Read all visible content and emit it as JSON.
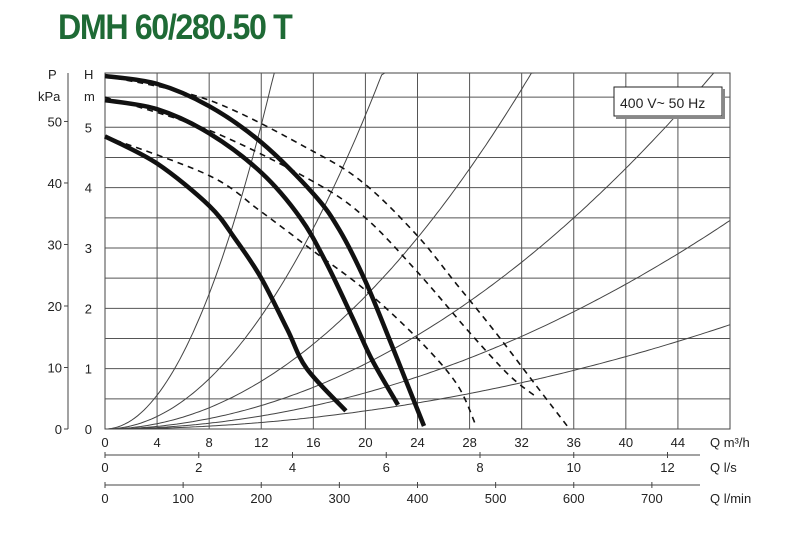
{
  "chart_data": {
    "type": "line",
    "title": "DMH 60/280.50 T",
    "voltage_label": "400 V~ 50 Hz",
    "axes": {
      "q_m3h": {
        "label": "Q m³/h",
        "ticks": [
          0,
          4,
          8,
          12,
          16,
          20,
          24,
          28,
          32,
          36,
          40,
          44
        ],
        "range": [
          0,
          48
        ]
      },
      "q_ls": {
        "label": "Q l/s",
        "ticks": [
          0,
          2,
          4,
          6,
          8,
          10,
          12
        ]
      },
      "q_lmin": {
        "label": "Q l/min",
        "ticks": [
          0,
          100,
          200,
          300,
          400,
          500,
          600,
          700
        ]
      },
      "h_m": {
        "label_top": "H",
        "label_unit": "m",
        "ticks": [
          0,
          1,
          2,
          3,
          4,
          5
        ],
        "range": [
          0,
          5.9
        ]
      },
      "p_kpa": {
        "label_top": "P",
        "label_unit": "kPa",
        "ticks": [
          0,
          10,
          20,
          30,
          40,
          50
        ]
      }
    },
    "grid": true,
    "series": [
      {
        "style": "solid-thick",
        "points": [
          [
            0,
            5.85
          ],
          [
            4,
            5.72
          ],
          [
            8,
            5.35
          ],
          [
            12,
            4.75
          ],
          [
            16,
            3.9
          ],
          [
            18,
            3.3
          ],
          [
            20,
            2.45
          ],
          [
            22,
            1.4
          ],
          [
            23.2,
            0.75
          ],
          [
            24.5,
            0.05
          ]
        ]
      },
      {
        "style": "solid-thick",
        "points": [
          [
            0,
            5.45
          ],
          [
            4,
            5.3
          ],
          [
            8,
            4.9
          ],
          [
            12,
            4.25
          ],
          [
            15,
            3.5
          ],
          [
            17,
            2.75
          ],
          [
            19,
            1.85
          ],
          [
            20.5,
            1.15
          ],
          [
            22.5,
            0.4
          ]
        ]
      },
      {
        "style": "solid-thick",
        "points": [
          [
            0,
            4.85
          ],
          [
            4,
            4.4
          ],
          [
            8,
            3.7
          ],
          [
            10,
            3.15
          ],
          [
            12,
            2.5
          ],
          [
            14,
            1.65
          ],
          [
            15.5,
            1.0
          ],
          [
            18.5,
            0.3
          ]
        ]
      },
      {
        "style": "dashed",
        "points": [
          [
            0,
            5.85
          ],
          [
            8,
            5.45
          ],
          [
            16,
            4.6
          ],
          [
            20,
            4.05
          ],
          [
            24,
            3.2
          ],
          [
            27,
            2.4
          ],
          [
            30,
            1.6
          ],
          [
            33,
            0.75
          ],
          [
            35.5,
            0.05
          ]
        ]
      },
      {
        "style": "dashed",
        "points": [
          [
            0,
            5.5
          ],
          [
            8,
            4.95
          ],
          [
            16,
            4.1
          ],
          [
            20,
            3.5
          ],
          [
            24,
            2.6
          ],
          [
            28,
            1.6
          ],
          [
            31,
            0.9
          ],
          [
            33,
            0.55
          ]
        ]
      },
      {
        "style": "dashed",
        "points": [
          [
            0,
            4.85
          ],
          [
            8,
            4.2
          ],
          [
            12,
            3.6
          ],
          [
            16,
            2.95
          ],
          [
            20,
            2.3
          ],
          [
            24,
            1.5
          ],
          [
            27,
            0.75
          ],
          [
            28.5,
            0.05
          ]
        ]
      }
    ],
    "system_curves_k": [
      0.035,
      0.013,
      0.0055,
      0.0027,
      0.0015,
      0.00075
    ]
  }
}
